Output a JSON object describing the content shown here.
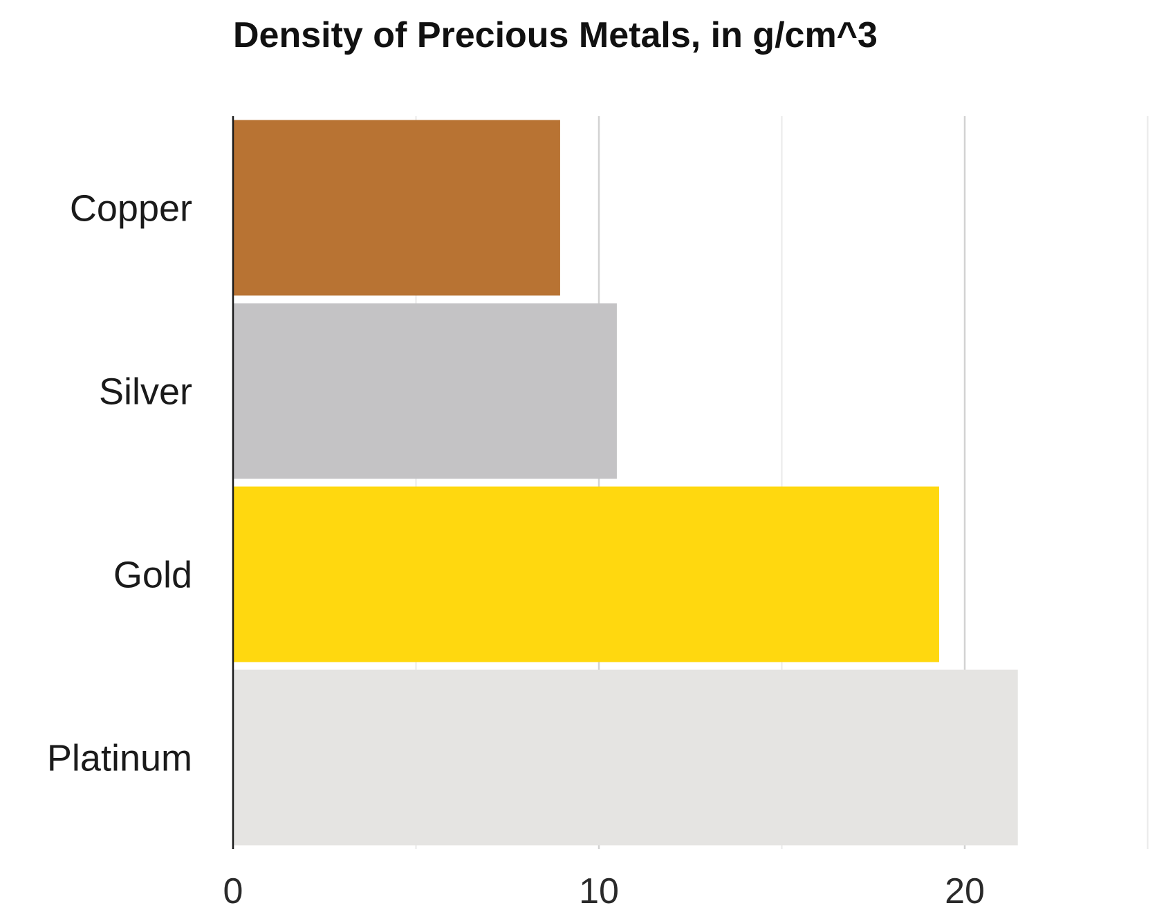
{
  "chart_data": {
    "type": "bar",
    "orientation": "horizontal",
    "title": "Density of Precious Metals, in g/cm^3",
    "xlabel": "",
    "ylabel": "",
    "categories": [
      "Copper",
      "Silver",
      "Gold",
      "Platinum"
    ],
    "values": [
      8.94,
      10.49,
      19.3,
      21.45
    ],
    "colors": [
      "#b87333",
      "#c4c3c5",
      "#ffd80f",
      "#e5e4e2"
    ],
    "xlim": [
      0,
      25
    ],
    "xticks": [
      0,
      10,
      20
    ],
    "minor_gridlines": [
      5,
      15,
      25
    ],
    "grid": true,
    "legend": "none"
  }
}
